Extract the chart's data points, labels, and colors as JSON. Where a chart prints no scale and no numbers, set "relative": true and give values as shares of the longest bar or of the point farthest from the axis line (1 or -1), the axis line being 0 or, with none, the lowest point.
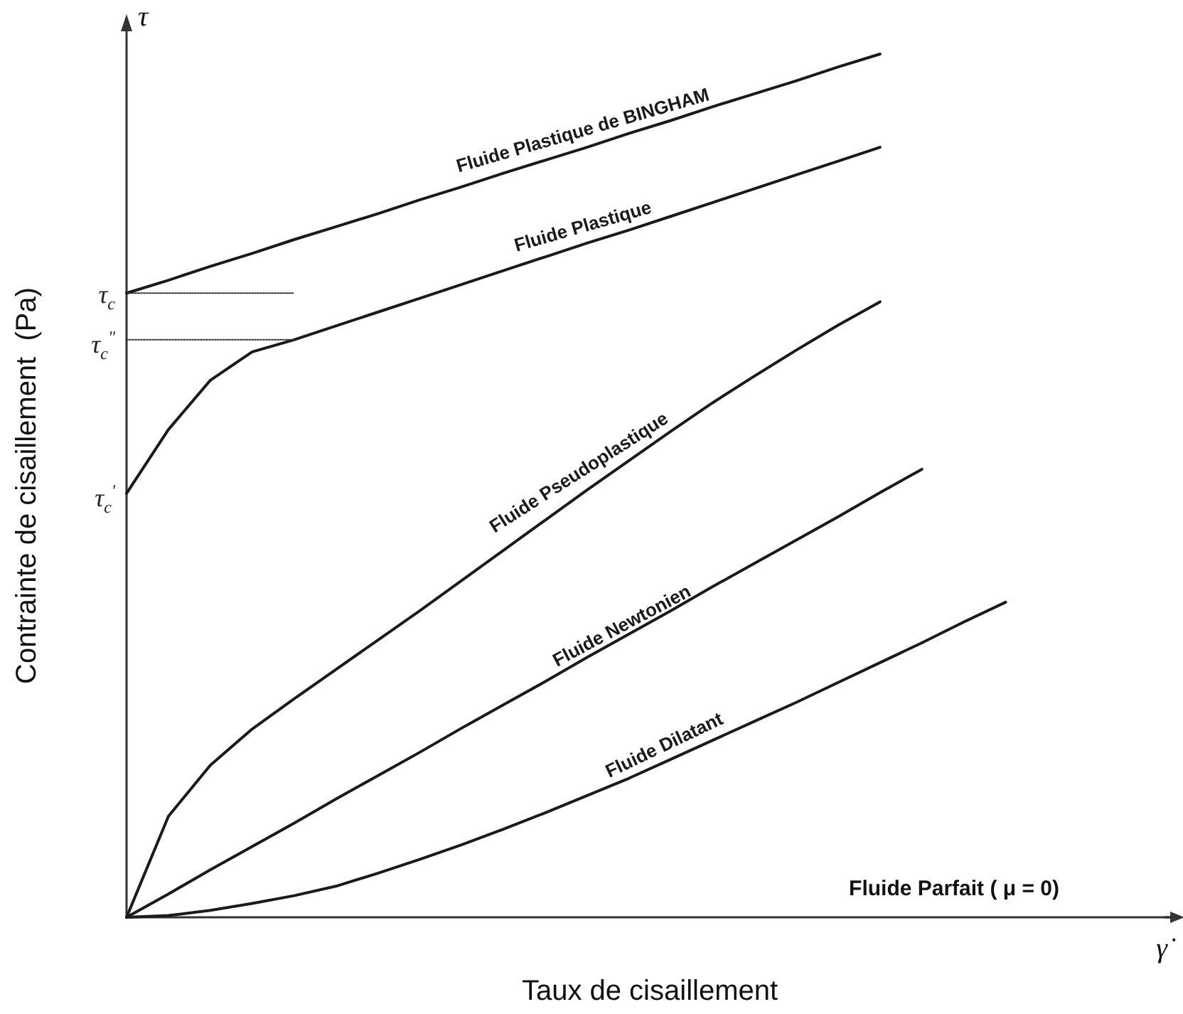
{
  "chart_data": {
    "type": "line",
    "relative": true,
    "xlabel": "Taux de cisaillement",
    "ylabel": "Contrainte de cisaillement  (Pa)",
    "legend": false,
    "grid": false,
    "marker": "none",
    "tick_labels": false,
    "categories": [
      null,
      null,
      null,
      null,
      null,
      null,
      null,
      null,
      null,
      null,
      null,
      null,
      null,
      null,
      null,
      null,
      null,
      null,
      null,
      null,
      null,
      null,
      null,
      null,
      null,
      null
    ],
    "series": [
      {
        "name": "Fluide Plastique de BINGHAM",
        "color": "#1a1a1a",
        "values": [
          0.723,
          0.738,
          0.754,
          0.769,
          0.785,
          0.8,
          0.815,
          0.831,
          0.846,
          0.862,
          0.877,
          0.892,
          0.908,
          0.923,
          0.939,
          0.954,
          0.969,
          0.985,
          1.0,
          null,
          null,
          null,
          null,
          null,
          null,
          null
        ]
      },
      {
        "name": "Fluide Plastique",
        "color": "#1a1a1a",
        "values": [
          0.491,
          0.565,
          0.622,
          0.655,
          0.669,
          0.685,
          0.701,
          0.717,
          0.733,
          0.749,
          0.765,
          0.781,
          0.796,
          0.812,
          0.828,
          0.844,
          0.86,
          0.876,
          0.892,
          null,
          null,
          null,
          null,
          null,
          null,
          null
        ]
      },
      {
        "name": "Fluide Pseudoplastique",
        "color": "#1a1a1a",
        "values": [
          0,
          0.117,
          0.176,
          0.218,
          0.253,
          0.287,
          0.321,
          0.355,
          0.39,
          0.425,
          0.46,
          0.495,
          0.529,
          0.563,
          0.596,
          0.627,
          0.657,
          0.686,
          0.713,
          null,
          null,
          null,
          null,
          null,
          null,
          null
        ]
      },
      {
        "name": "Fluide Newtonien",
        "color": "#1a1a1a",
        "values": [
          0,
          0.027,
          0.055,
          0.082,
          0.109,
          0.137,
          0.164,
          0.191,
          0.219,
          0.246,
          0.273,
          0.301,
          0.328,
          0.355,
          0.383,
          0.41,
          0.437,
          0.464,
          0.492,
          0.519,
          null,
          null,
          null,
          null,
          null,
          null
        ]
      },
      {
        "name": "Fluide Dilatant",
        "color": "#1a1a1a",
        "values": [
          0,
          0.002,
          0.008,
          0.016,
          0.025,
          0.036,
          0.051,
          0.067,
          0.084,
          0.102,
          0.121,
          0.141,
          0.161,
          0.183,
          0.205,
          0.227,
          0.249,
          0.272,
          0.295,
          0.318,
          0.342,
          0.365,
          null,
          null,
          null,
          null
        ]
      },
      {
        "color": "#333333",
        "line_style": "dotted",
        "values": [
          0.723,
          0.723,
          0.723,
          0.723,
          0.723,
          null,
          null,
          null,
          null,
          null,
          null,
          null,
          null,
          null,
          null,
          null,
          null,
          null,
          null,
          null,
          null,
          null,
          null,
          null,
          null,
          null
        ]
      },
      {
        "color": "#333333",
        "line_style": "dotted",
        "values": [
          0.669,
          0.669,
          0.669,
          0.669,
          0.669,
          null,
          null,
          null,
          null,
          null,
          null,
          null,
          null,
          null,
          null,
          null,
          null,
          null,
          null,
          null,
          null,
          null,
          null,
          null,
          null,
          null
        ]
      }
    ],
    "annotations": [
      "τ",
      "γ̇",
      "Fluide Parfait ( μ = 0)",
      "τ$_{c}$",
      "τ$_{c}$$^{\"}$",
      "τ$_{c}$$^{'}$"
    ]
  }
}
